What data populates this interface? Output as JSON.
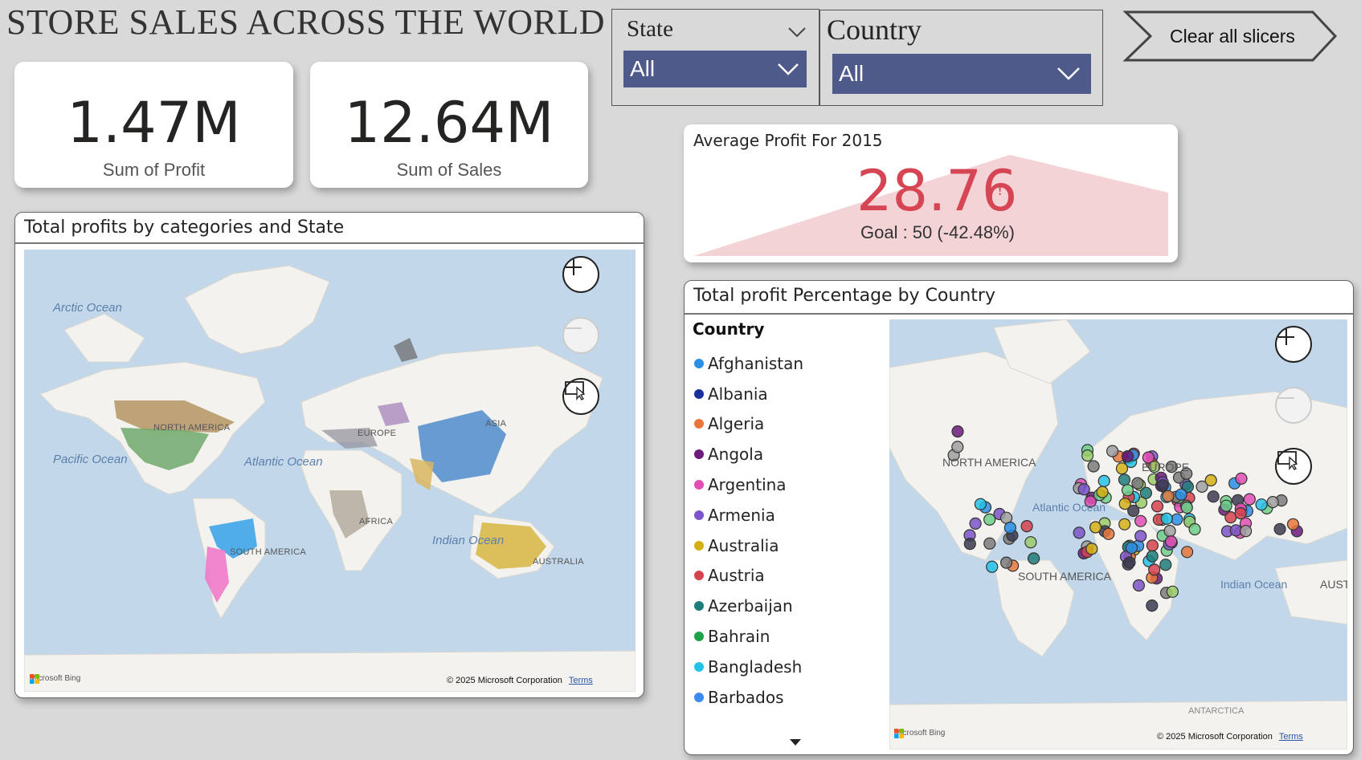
{
  "page_title": "STORE SALES ACROSS THE WORLD",
  "kpis": {
    "profit": {
      "value": "1.47M",
      "label": "Sum of Profit"
    },
    "sales": {
      "value": "12.64M",
      "label": "Sum of Sales"
    }
  },
  "slicers": {
    "state": {
      "title": "State",
      "value": "All"
    },
    "country": {
      "title": "Country",
      "value": "All"
    }
  },
  "clear_button": {
    "label": "Clear all slicers"
  },
  "gauge": {
    "title": "Average Profit For 2015",
    "value": "28.76",
    "alert": "!",
    "goal_text": "Goal : 50 (-42.48%)",
    "value_num": 28.76,
    "goal_num": 50,
    "colors": {
      "value": "#d64554",
      "fill": "#f4d3d7"
    }
  },
  "map1": {
    "title": "Total profits by categories and State",
    "oceans": [
      "Arctic Ocean",
      "Pacific Ocean",
      "Atlantic Ocean",
      "Indian Ocean"
    ],
    "continents": [
      "North America",
      "Europe",
      "Asia",
      "Africa",
      "South America",
      "Australia"
    ],
    "bing": "Microsoft Bing",
    "copyright": "© 2025 Microsoft Corporation",
    "terms": "Terms"
  },
  "map2": {
    "title": "Total profit Percentage by Country",
    "legend_title": "Country",
    "countries": [
      {
        "name": "Afghanistan",
        "color": "#2b8fe6"
      },
      {
        "name": "Albania",
        "color": "#1b2f99"
      },
      {
        "name": "Algeria",
        "color": "#e8773b"
      },
      {
        "name": "Angola",
        "color": "#6b1b7a"
      },
      {
        "name": "Argentina",
        "color": "#e24fb4"
      },
      {
        "name": "Armenia",
        "color": "#7b55c9"
      },
      {
        "name": "Australia",
        "color": "#d2b015"
      },
      {
        "name": "Austria",
        "color": "#d6434f"
      },
      {
        "name": "Azerbaijan",
        "color": "#1d7d7a"
      },
      {
        "name": "Bahrain",
        "color": "#1ea34a"
      },
      {
        "name": "Bangladesh",
        "color": "#25c2e8"
      },
      {
        "name": "Barbados",
        "color": "#3c8af0"
      }
    ],
    "labels": {
      "north_america": "NORTH AMERICA",
      "europe": "EUROPE",
      "atlantic": "Atlantic Ocean",
      "south_america": "SOUTH AMERICA",
      "indian": "Indian Ocean",
      "australia": "AUST",
      "antarctica": "ANTARCTICA"
    },
    "bing": "Microsoft Bing",
    "copyright": "© 2025 Microsoft Corporation",
    "terms": "Terms"
  },
  "icons": [
    "zoom-in-icon",
    "zoom-out-icon",
    "select-region-icon",
    "chevron-down-icon",
    "scroll-down-icon"
  ]
}
